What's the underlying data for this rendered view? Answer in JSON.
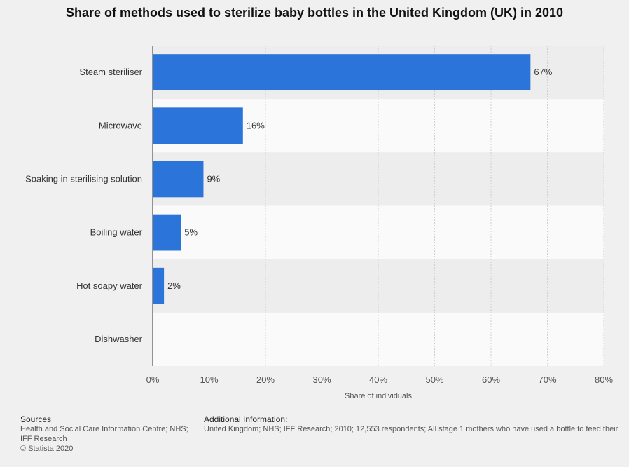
{
  "title": "Share of methods used to sterilize baby bottles in the United Kingdom (UK) in 2010",
  "chart_data": {
    "type": "bar",
    "orientation": "horizontal",
    "categories": [
      "Steam steriliser",
      "Microwave",
      "Soaking in sterilising solution",
      "Boiling water",
      "Hot soapy water",
      "Dishwasher"
    ],
    "values": [
      67,
      16,
      9,
      5,
      2,
      0
    ],
    "value_labels": [
      "67%",
      "16%",
      "9%",
      "5%",
      "2%",
      ""
    ],
    "xlabel": "Share of individuals",
    "xlim": [
      0,
      80
    ],
    "xticks": [
      0,
      10,
      20,
      30,
      40,
      50,
      60,
      70,
      80
    ],
    "xtick_labels": [
      "0%",
      "10%",
      "20%",
      "30%",
      "40%",
      "50%",
      "60%",
      "70%",
      "80%"
    ],
    "grid": true,
    "bar_color": "#2a74da"
  },
  "footer": {
    "sources_heading": "Sources",
    "sources_line1": "Health and Social Care Information Centre; NHS;",
    "sources_line2": "IFF Research",
    "sources_line3": "© Statista 2020",
    "additional_heading": "Additional Information:",
    "additional_text": "United Kingdom; NHS; IFF Research; 2010; 12,553 respondents; All stage 1 mothers who have used a bottle to feed their"
  }
}
